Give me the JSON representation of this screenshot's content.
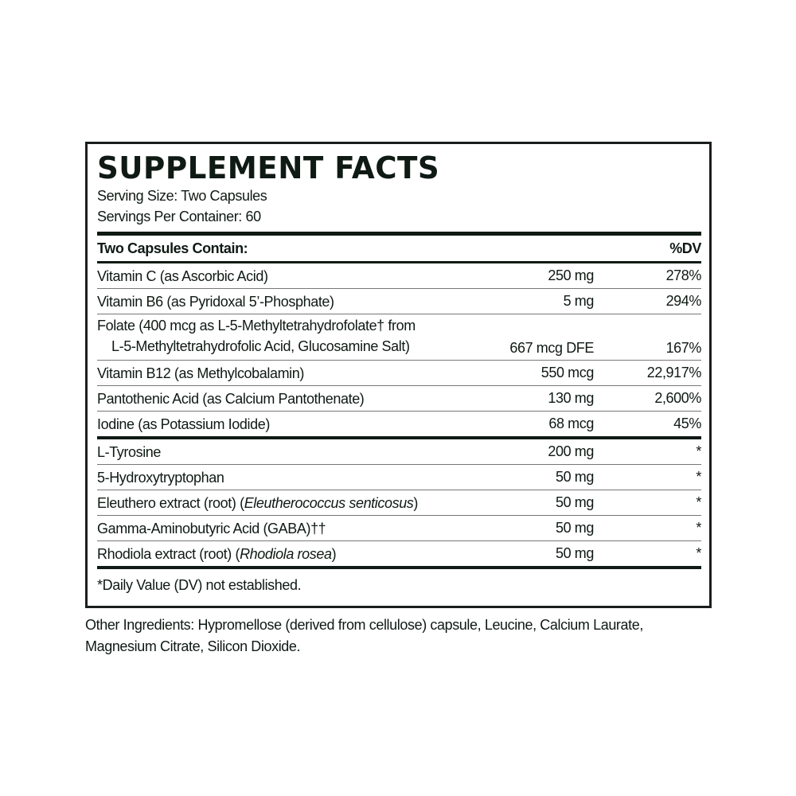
{
  "title": "SUPPLEMENT FACTS",
  "serving_size": "Serving Size: Two Capsules",
  "servings_per_container": "Servings Per Container: 60",
  "header": {
    "name": "Two Capsules Contain:",
    "dv": "%DV"
  },
  "vitamins": [
    {
      "name": "Vitamin C (as Ascorbic Acid)",
      "amount": "250 mg",
      "dv": "278%"
    },
    {
      "name": "Vitamin B6 (as Pyridoxal 5’-Phosphate)",
      "amount": "5 mg",
      "dv": "294%"
    },
    {
      "name": "Folate (400 mcg as L-5-Methyltetrahydrofolate† from",
      "name_line2": "L-5-Methyltetrahydrofolic Acid, Glucosamine Salt)",
      "amount": "667 mcg DFE",
      "dv": "167%"
    },
    {
      "name": "Vitamin B12 (as Methylcobalamin)",
      "amount": "550 mcg",
      "dv": "22,917%"
    },
    {
      "name": "Pantothenic Acid (as Calcium Pantothenate)",
      "amount": "130 mg",
      "dv": "2,600%"
    },
    {
      "name": "Iodine (as Potassium Iodide)",
      "amount": "68 mcg",
      "dv": "45%"
    }
  ],
  "others": [
    {
      "name": "L-Tyrosine",
      "amount": "200 mg",
      "dv": "*"
    },
    {
      "name": "5-Hydroxytryptophan",
      "amount": "50 mg",
      "dv": "*"
    },
    {
      "name": "Eleuthero extract (root) (",
      "latin": "Eleutherococcus senticosus",
      "suffix": ")",
      "amount": "50 mg",
      "dv": "*"
    },
    {
      "name": "Gamma-Aminobutyric Acid (GABA)††",
      "amount": "50 mg",
      "dv": "*"
    },
    {
      "name": "Rhodiola extract (root) (",
      "latin": "Rhodiola rosea",
      "suffix": ")",
      "amount": "50 mg",
      "dv": "*"
    }
  ],
  "footnote": "*Daily Value (DV) not established.",
  "other_ingredients_line1": "Other Ingredients: Hypromellose (derived from cellulose) capsule, Leucine, Calcium Laurate,",
  "other_ingredients_line2": "Magnesium Citrate, Silicon Dioxide."
}
